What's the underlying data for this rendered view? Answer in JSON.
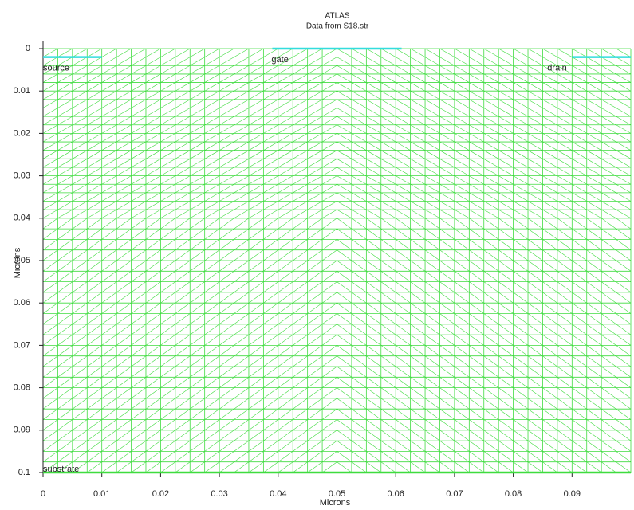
{
  "chart_data": {
    "type": "mesh",
    "title": "ATLAS",
    "subtitle": "Data from S18.str",
    "x_label": "Microns",
    "y_label": "Microns",
    "xlim": [
      0,
      0.1
    ],
    "ylim": [
      0,
      0.1
    ],
    "y_inverted": true,
    "xticks": [
      0,
      0.01,
      0.02,
      0.03,
      0.04,
      0.05,
      0.06,
      0.07,
      0.08,
      0.09
    ],
    "yticks": [
      0,
      0.01,
      0.02,
      0.03,
      0.04,
      0.05,
      0.06,
      0.07,
      0.08,
      0.09,
      0.1
    ],
    "mesh_color": "#3fdc3f",
    "mesh_x": [
      0,
      0.0025,
      0.005,
      0.0075,
      0.01,
      0.0125,
      0.015,
      0.0175,
      0.02,
      0.0225,
      0.025,
      0.0275,
      0.03,
      0.0325,
      0.035,
      0.0375,
      0.04,
      0.0425,
      0.045,
      0.0475,
      0.05,
      0.0525,
      0.055,
      0.0575,
      0.06,
      0.0625,
      0.065,
      0.0675,
      0.07,
      0.0725,
      0.075,
      0.0775,
      0.08,
      0.0825,
      0.085,
      0.0875,
      0.09,
      0.0925,
      0.095,
      0.0975,
      0.1
    ],
    "mesh_y": [
      0,
      0.002,
      0.004,
      0.006,
      0.008,
      0.01,
      0.012,
      0.014,
      0.016,
      0.018,
      0.02,
      0.022,
      0.024,
      0.026,
      0.028,
      0.03,
      0.032,
      0.034,
      0.036,
      0.038,
      0.04,
      0.0425,
      0.045,
      0.0475,
      0.05,
      0.0525,
      0.055,
      0.0575,
      0.06,
      0.0625,
      0.065,
      0.0675,
      0.07,
      0.0725,
      0.075,
      0.0775,
      0.08,
      0.0825,
      0.085,
      0.0875,
      0.09,
      0.0925,
      0.095,
      0.0975,
      0.1
    ],
    "electrodes": [
      {
        "name": "source",
        "x": [
          0,
          0.01
        ],
        "y": 0.002,
        "color": "#33dddd"
      },
      {
        "name": "gate",
        "x": [
          0.039,
          0.061
        ],
        "y": 0,
        "color": "#33dddd"
      },
      {
        "name": "drain",
        "x": [
          0.09,
          0.1
        ],
        "y": 0.002,
        "color": "#33dddd"
      },
      {
        "name": "substrate",
        "x": [
          0,
          0.1
        ],
        "y": 0.1,
        "color": "#3fdc3f"
      }
    ]
  }
}
